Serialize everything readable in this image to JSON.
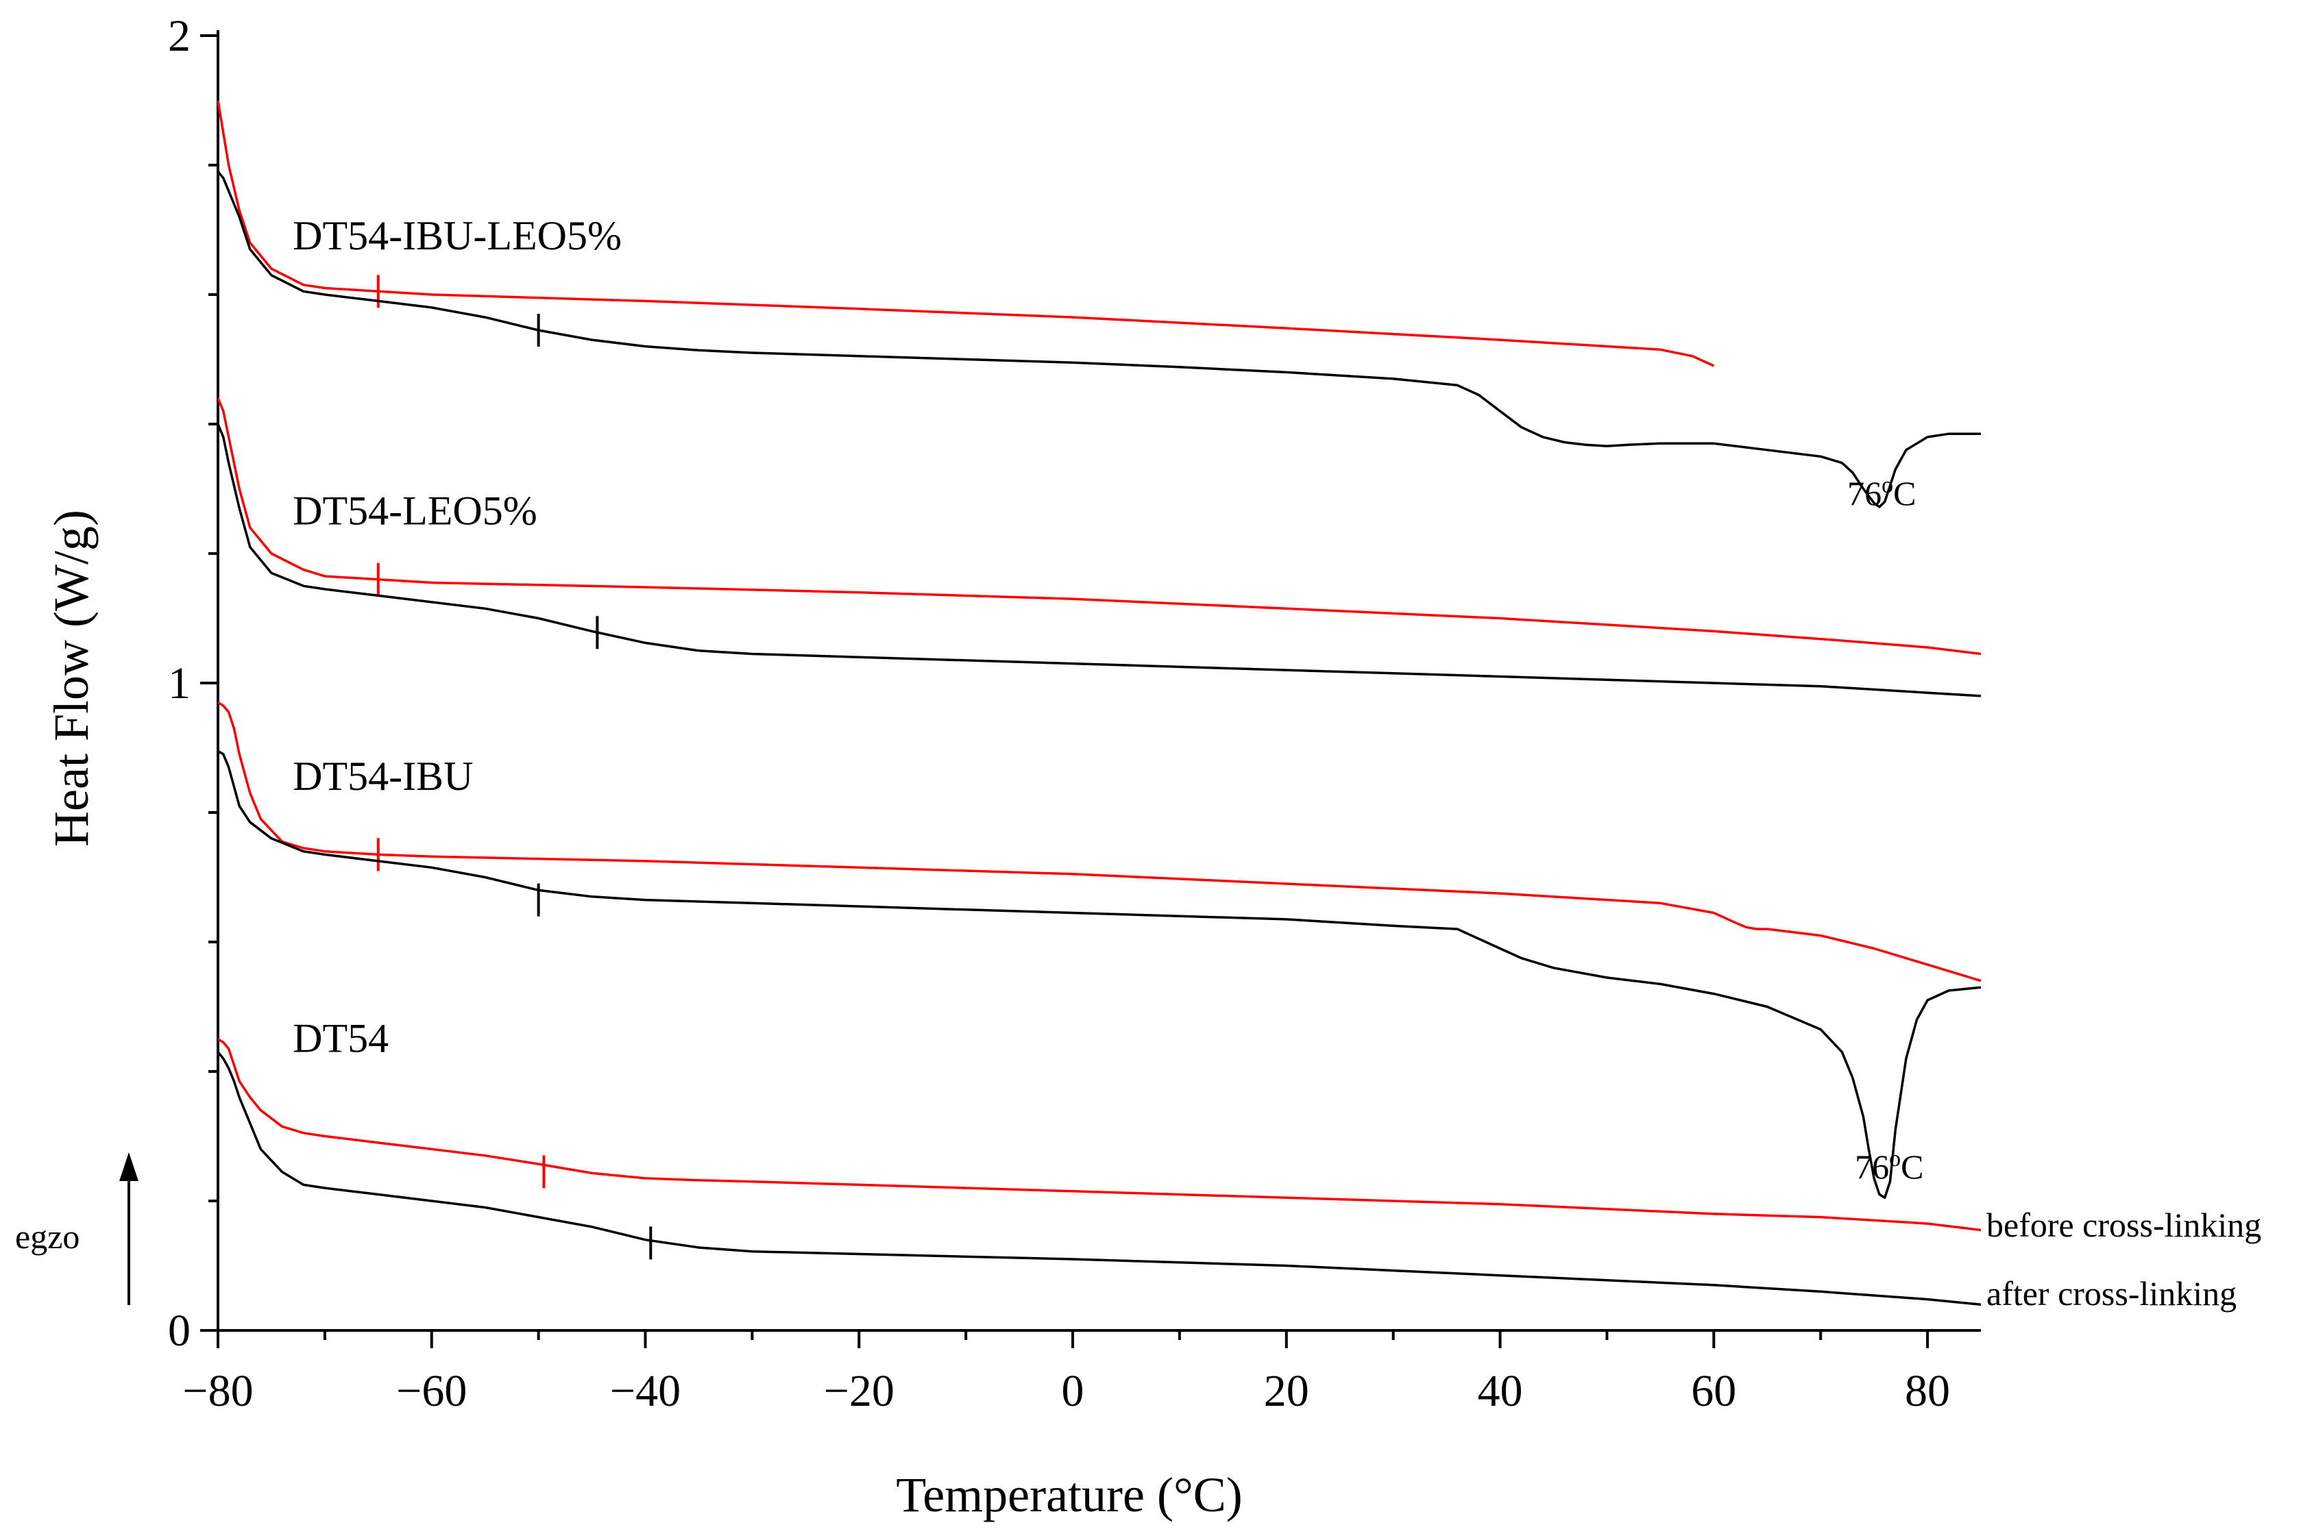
{
  "chart_data": {
    "type": "line",
    "title": "",
    "xlabel": "Temperature (°C)",
    "ylabel": "Heat Flow (W/g)",
    "xlim": [
      -80,
      85
    ],
    "ylim": [
      0,
      2
    ],
    "x_ticks": [
      -80,
      -60,
      -40,
      -20,
      0,
      20,
      40,
      60,
      80
    ],
    "x_tick_labels": [
      "−80",
      "−60",
      "−40",
      "−20",
      "0",
      "20",
      "40",
      "60",
      "80"
    ],
    "y_ticks": [
      0,
      1,
      2
    ],
    "y_tick_labels": [
      "0",
      "1",
      "2"
    ],
    "colors": {
      "before": "#ff0000",
      "after": "#000000",
      "axis": "#000000"
    },
    "series_labels": [
      {
        "text": "DT54-IBU-LEO5%",
        "x": -73,
        "y": 1.67
      },
      {
        "text": "DT54-LEO5%",
        "x": -73,
        "y": 1.245
      },
      {
        "text": "DT54-IBU",
        "x": -73,
        "y": 0.835
      },
      {
        "text": "DT54",
        "x": -73,
        "y": 0.43
      }
    ],
    "annotations": [
      {
        "text": "76",
        "sup": "o",
        "tail": "C",
        "x": 72.5,
        "y": 1.275
      },
      {
        "text": "76",
        "sup": "o",
        "tail": "C",
        "x": 73.2,
        "y": 0.235
      }
    ],
    "legend": {
      "placement": "bottom-right",
      "before_label": "before cross-linking",
      "after_label": "after cross-linking"
    },
    "exo": {
      "label": "egzo",
      "direction": "up"
    },
    "series": [
      {
        "name": "DT54-IBU-LEO5% before cross-linking",
        "color": "#ff0000",
        "x": [
          -80,
          -79.5,
          -79,
          -78,
          -77,
          -75,
          -72,
          -70,
          -65,
          -60,
          -40,
          -20,
          0,
          20,
          40,
          55,
          58,
          60
        ],
        "y": [
          1.9,
          1.85,
          1.8,
          1.73,
          1.68,
          1.64,
          1.615,
          1.61,
          1.605,
          1.6,
          1.59,
          1.578,
          1.565,
          1.548,
          1.53,
          1.515,
          1.505,
          1.49
        ],
        "tg": {
          "x": -65,
          "y": 1.605
        }
      },
      {
        "name": "DT54-IBU-LEO5% after cross-linking",
        "color": "#000000",
        "x": [
          -80,
          -79.5,
          -79,
          -78,
          -77,
          -75,
          -72,
          -70,
          -65,
          -60,
          -55,
          -50,
          -45,
          -40,
          -35,
          -30,
          -20,
          -10,
          0,
          10,
          20,
          30,
          36,
          38,
          40,
          42,
          44,
          46,
          48,
          50,
          52,
          55,
          60,
          65,
          70,
          72,
          73,
          74,
          75,
          75.5,
          76,
          76.5,
          77,
          78,
          80,
          82,
          85
        ],
        "y": [
          1.79,
          1.78,
          1.76,
          1.72,
          1.67,
          1.63,
          1.605,
          1.6,
          1.59,
          1.58,
          1.565,
          1.545,
          1.53,
          1.52,
          1.514,
          1.51,
          1.505,
          1.5,
          1.495,
          1.488,
          1.48,
          1.47,
          1.46,
          1.445,
          1.42,
          1.395,
          1.38,
          1.372,
          1.368,
          1.366,
          1.368,
          1.37,
          1.37,
          1.36,
          1.35,
          1.34,
          1.325,
          1.3,
          1.278,
          1.272,
          1.28,
          1.305,
          1.33,
          1.36,
          1.38,
          1.385,
          1.385
        ],
        "tg": {
          "x": -50,
          "y": 1.545
        }
      },
      {
        "name": "DT54-LEO5% before cross-linking",
        "color": "#ff0000",
        "x": [
          -80,
          -79.5,
          -79,
          -78,
          -77,
          -75,
          -72,
          -70,
          -65,
          -60,
          -40,
          -20,
          0,
          20,
          40,
          60,
          70,
          80,
          85
        ],
        "y": [
          1.44,
          1.42,
          1.38,
          1.3,
          1.24,
          1.2,
          1.175,
          1.165,
          1.16,
          1.155,
          1.148,
          1.14,
          1.13,
          1.115,
          1.1,
          1.08,
          1.068,
          1.055,
          1.045
        ],
        "tg": {
          "x": -65,
          "y": 1.16
        }
      },
      {
        "name": "DT54-LEO5% after cross-linking",
        "color": "#000000",
        "x": [
          -80,
          -79.5,
          -79,
          -78,
          -77,
          -75,
          -72,
          -70,
          -65,
          -60,
          -55,
          -50,
          -45,
          -40,
          -35,
          -30,
          -20,
          0,
          20,
          40,
          60,
          70,
          80,
          85
        ],
        "y": [
          1.4,
          1.38,
          1.34,
          1.27,
          1.21,
          1.17,
          1.15,
          1.145,
          1.135,
          1.125,
          1.115,
          1.1,
          1.08,
          1.062,
          1.05,
          1.045,
          1.04,
          1.03,
          1.02,
          1.01,
          1.0,
          0.995,
          0.985,
          0.98
        ],
        "tg": {
          "x": -44.5,
          "y": 1.078
        }
      },
      {
        "name": "DT54-IBU before cross-linking",
        "color": "#ff0000",
        "x": [
          -80,
          -79.5,
          -79,
          -78.5,
          -78,
          -77,
          -76,
          -74,
          -72,
          -70,
          -65,
          -60,
          -40,
          -20,
          0,
          20,
          40,
          55,
          60,
          62,
          63,
          64,
          65,
          66,
          70,
          75,
          80,
          85
        ],
        "y": [
          0.97,
          0.965,
          0.955,
          0.93,
          0.89,
          0.83,
          0.79,
          0.755,
          0.745,
          0.74,
          0.735,
          0.732,
          0.725,
          0.715,
          0.705,
          0.69,
          0.675,
          0.66,
          0.645,
          0.63,
          0.623,
          0.62,
          0.62,
          0.618,
          0.61,
          0.59,
          0.565,
          0.54
        ],
        "tg": {
          "x": -65,
          "y": 0.735
        }
      },
      {
        "name": "DT54-IBU after cross-linking",
        "color": "#000000",
        "x": [
          -80,
          -79.5,
          -79,
          -78.5,
          -78,
          -77,
          -75,
          -72,
          -70,
          -65,
          -60,
          -55,
          -50,
          -45,
          -40,
          -30,
          -20,
          -10,
          0,
          10,
          20,
          30,
          36,
          38,
          40,
          42,
          45,
          50,
          55,
          60,
          65,
          70,
          72,
          73,
          74,
          74.5,
          75,
          75.5,
          76,
          76.5,
          77,
          78,
          79,
          80,
          82,
          85
        ],
        "y": [
          0.895,
          0.89,
          0.87,
          0.84,
          0.81,
          0.785,
          0.76,
          0.74,
          0.735,
          0.725,
          0.715,
          0.7,
          0.68,
          0.67,
          0.665,
          0.66,
          0.655,
          0.65,
          0.645,
          0.64,
          0.635,
          0.625,
          0.62,
          0.605,
          0.59,
          0.575,
          0.56,
          0.545,
          0.535,
          0.52,
          0.5,
          0.465,
          0.43,
          0.39,
          0.33,
          0.28,
          0.235,
          0.21,
          0.205,
          0.23,
          0.31,
          0.42,
          0.48,
          0.51,
          0.525,
          0.53
        ],
        "tg": {
          "x": -50,
          "y": 0.665
        }
      },
      {
        "name": "DT54 before cross-linking",
        "color": "#ff0000",
        "x": [
          -80,
          -79.5,
          -79,
          -78.5,
          -78,
          -77,
          -76,
          -74,
          -72,
          -70,
          -65,
          -60,
          -55,
          -50,
          -45,
          -40,
          -35,
          -30,
          -20,
          0,
          20,
          40,
          60,
          70,
          80,
          85
        ],
        "y": [
          0.45,
          0.445,
          0.435,
          0.41,
          0.385,
          0.36,
          0.34,
          0.315,
          0.305,
          0.3,
          0.29,
          0.28,
          0.27,
          0.257,
          0.243,
          0.235,
          0.232,
          0.23,
          0.225,
          0.215,
          0.205,
          0.195,
          0.18,
          0.175,
          0.165,
          0.155
        ],
        "tg": {
          "x": -49.5,
          "y": 0.245
        }
      },
      {
        "name": "DT54 after cross-linking",
        "color": "#000000",
        "x": [
          -80,
          -79.5,
          -79,
          -78.5,
          -78,
          -77,
          -76,
          -74,
          -72,
          -70,
          -65,
          -60,
          -55,
          -50,
          -45,
          -40,
          -35,
          -30,
          -20,
          0,
          20,
          40,
          60,
          70,
          80,
          85
        ],
        "y": [
          0.43,
          0.42,
          0.405,
          0.385,
          0.36,
          0.32,
          0.28,
          0.245,
          0.225,
          0.22,
          0.21,
          0.2,
          0.19,
          0.175,
          0.16,
          0.14,
          0.128,
          0.122,
          0.118,
          0.11,
          0.1,
          0.085,
          0.07,
          0.06,
          0.048,
          0.04
        ],
        "tg": {
          "x": -39.5,
          "y": 0.135
        }
      }
    ]
  }
}
